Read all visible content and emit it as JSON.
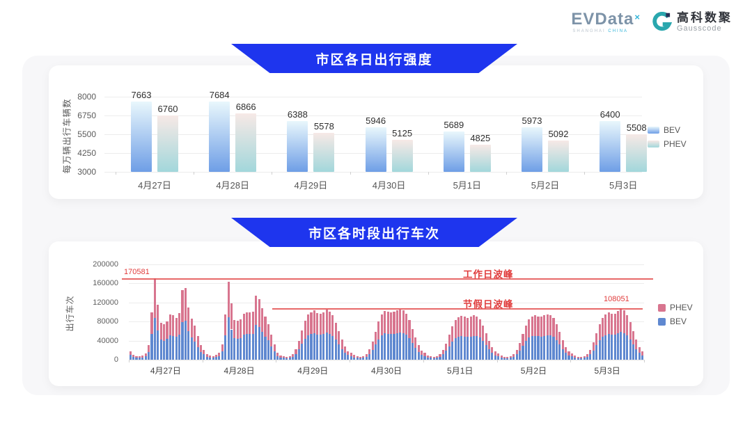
{
  "logo": {
    "brand": "EVData",
    "brand_sup": "×",
    "brand_sub_left": "SHANGHAI",
    "brand_sub_right": "CHINA",
    "partner_cn": "高科数聚",
    "partner_en": "Gausscode"
  },
  "colors": {
    "banner_blue": "#1e35ee",
    "bev_gradient": [
      "#e9f7fc",
      "#6e9ee6"
    ],
    "phev_gradient": [
      "#f7e9e6",
      "#a2d7db"
    ],
    "bev_bottom": "#5f88d0",
    "phev_bottom": "#d8758f",
    "annotation_red": "#e03b3b"
  },
  "chart_data": [
    {
      "type": "bar",
      "title": "市区各日出行强度",
      "ylabel": "每万辆出行车辆数",
      "ylim": [
        3000,
        8000
      ],
      "yticks": [
        3000,
        4250,
        5500,
        6750,
        8000
      ],
      "grid": true,
      "legend_position": "right",
      "categories": [
        "4月27日",
        "4月28日",
        "4月29日",
        "4月30日",
        "5月1日",
        "5月2日",
        "5月3日"
      ],
      "series": [
        {
          "name": "BEV",
          "values": [
            7663,
            7684,
            6388,
            5946,
            5689,
            5973,
            6400
          ]
        },
        {
          "name": "PHEV",
          "values": [
            6760,
            6866,
            5578,
            5125,
            4825,
            5092,
            5508
          ]
        }
      ]
    },
    {
      "type": "stacked-bar",
      "title": "市区各时段出行车次",
      "ylabel": "出行车次",
      "ylim": [
        0,
        200000
      ],
      "yticks": [
        0,
        40000,
        80000,
        120000,
        160000,
        200000
      ],
      "grid": true,
      "legend_position": "right",
      "legend": [
        "PHEV",
        "BEV"
      ],
      "x_unit": "hour-of-day (24 bars per date)",
      "annotations": {
        "workday_peak": {
          "label": "工作日波峰",
          "value": 170581,
          "value_label": "170581"
        },
        "holiday_peak": {
          "label": "节假日波峰",
          "value": 108051,
          "value_label": "108051"
        }
      },
      "days": [
        {
          "date": "4月27日",
          "bev": [
            9500,
            5500,
            4500,
            4000,
            5000,
            7000,
            16000,
            54000,
            88000,
            62000,
            42000,
            40000,
            44000,
            51000,
            50000,
            47500,
            53000,
            79000,
            81500,
            59500,
            46500,
            38500,
            26500,
            16000
          ],
          "phev": [
            8000,
            5000,
            3500,
            3000,
            4000,
            6000,
            14000,
            46000,
            82581,
            53000,
            36000,
            34000,
            37000,
            44000,
            43000,
            40500,
            45000,
            67000,
            69500,
            50500,
            39500,
            32500,
            22500,
            14000
          ]
        },
        {
          "date": "4月28日",
          "bev": [
            11000,
            6500,
            5000,
            4500,
            5500,
            7500,
            17500,
            51500,
            88500,
            63500,
            45000,
            44500,
            45500,
            52000,
            54000,
            53500,
            54500,
            72500,
            68500,
            58500,
            48500,
            40500,
            28000,
            17500
          ],
          "phev": [
            9000,
            5500,
            4000,
            3500,
            4500,
            6500,
            14500,
            43500,
            75500,
            54500,
            38000,
            37500,
            38500,
            44000,
            46000,
            45500,
            46500,
            61500,
            58500,
            49500,
            41500,
            34500,
            24000,
            14500
          ]
        },
        {
          "date": "4月29日",
          "bev": [
            7500,
            5000,
            4000,
            3500,
            4500,
            6500,
            12000,
            21500,
            33500,
            44500,
            51500,
            54000,
            55500,
            53000,
            52000,
            54000,
            56500,
            54500,
            50000,
            42000,
            32500,
            22500,
            15000,
            9500
          ],
          "phev": [
            6500,
            4000,
            3000,
            3000,
            3500,
            5500,
            10000,
            18500,
            28500,
            37500,
            43500,
            46000,
            47500,
            45000,
            44000,
            46000,
            48500,
            46500,
            43000,
            36000,
            27500,
            19500,
            13000,
            8500
          ]
        },
        {
          "date": "4月30日",
          "bev": [
            8000,
            5000,
            4000,
            3500,
            4500,
            6500,
            12000,
            20500,
            31500,
            43000,
            51500,
            55000,
            54500,
            53500,
            54500,
            55500,
            56500,
            56000,
            52500,
            45000,
            34500,
            25000,
            16000,
            10500
          ],
          "phev": [
            7000,
            4500,
            3000,
            3000,
            3500,
            5500,
            10000,
            17500,
            26500,
            37000,
            43500,
            47000,
            46500,
            45500,
            46500,
            47500,
            48500,
            48000,
            44500,
            38000,
            29500,
            21000,
            14000,
            8500
          ]
        },
        {
          "date": "5月1日",
          "bev": [
            7500,
            5000,
            4000,
            3000,
            4000,
            6000,
            11000,
            18500,
            28000,
            38000,
            45000,
            48000,
            49500,
            48500,
            47500,
            48500,
            50000,
            49000,
            46000,
            39000,
            30000,
            21500,
            14000,
            9000
          ],
          "phev": [
            6500,
            4000,
            3000,
            3000,
            3500,
            5000,
            9000,
            15500,
            24000,
            32000,
            38000,
            41000,
            42500,
            41500,
            40500,
            41500,
            43000,
            42000,
            39000,
            33000,
            26000,
            18500,
            12000,
            8000
          ]
        },
        {
          "date": "5月2日",
          "bev": [
            7000,
            4500,
            3500,
            3000,
            4000,
            6000,
            11000,
            19000,
            29000,
            39000,
            46000,
            49000,
            50000,
            49000,
            48500,
            50000,
            51500,
            50500,
            47500,
            40500,
            31500,
            22000,
            14500,
            9000
          ],
          "phev": [
            6000,
            4000,
            3000,
            3000,
            3500,
            5000,
            9000,
            16000,
            25000,
            33000,
            39000,
            42000,
            43000,
            42000,
            41500,
            43000,
            43500,
            43500,
            40500,
            34500,
            26500,
            19000,
            12500,
            8000
          ]
        },
        {
          "date": "5月3日",
          "bev": [
            7000,
            4500,
            3500,
            3000,
            4000,
            6000,
            11000,
            19500,
            30000,
            40500,
            47500,
            51500,
            53500,
            52500,
            52000,
            55000,
            58000,
            56000,
            51000,
            42500,
            32500,
            22500,
            14500,
            9000
          ],
          "phev": [
            6000,
            4000,
            3000,
            3000,
            3500,
            5000,
            9000,
            16500,
            26000,
            34500,
            40500,
            43500,
            45500,
            44500,
            44000,
            47000,
            50051,
            48000,
            43000,
            36500,
            27500,
            19500,
            12500,
            8000
          ]
        }
      ]
    }
  ]
}
